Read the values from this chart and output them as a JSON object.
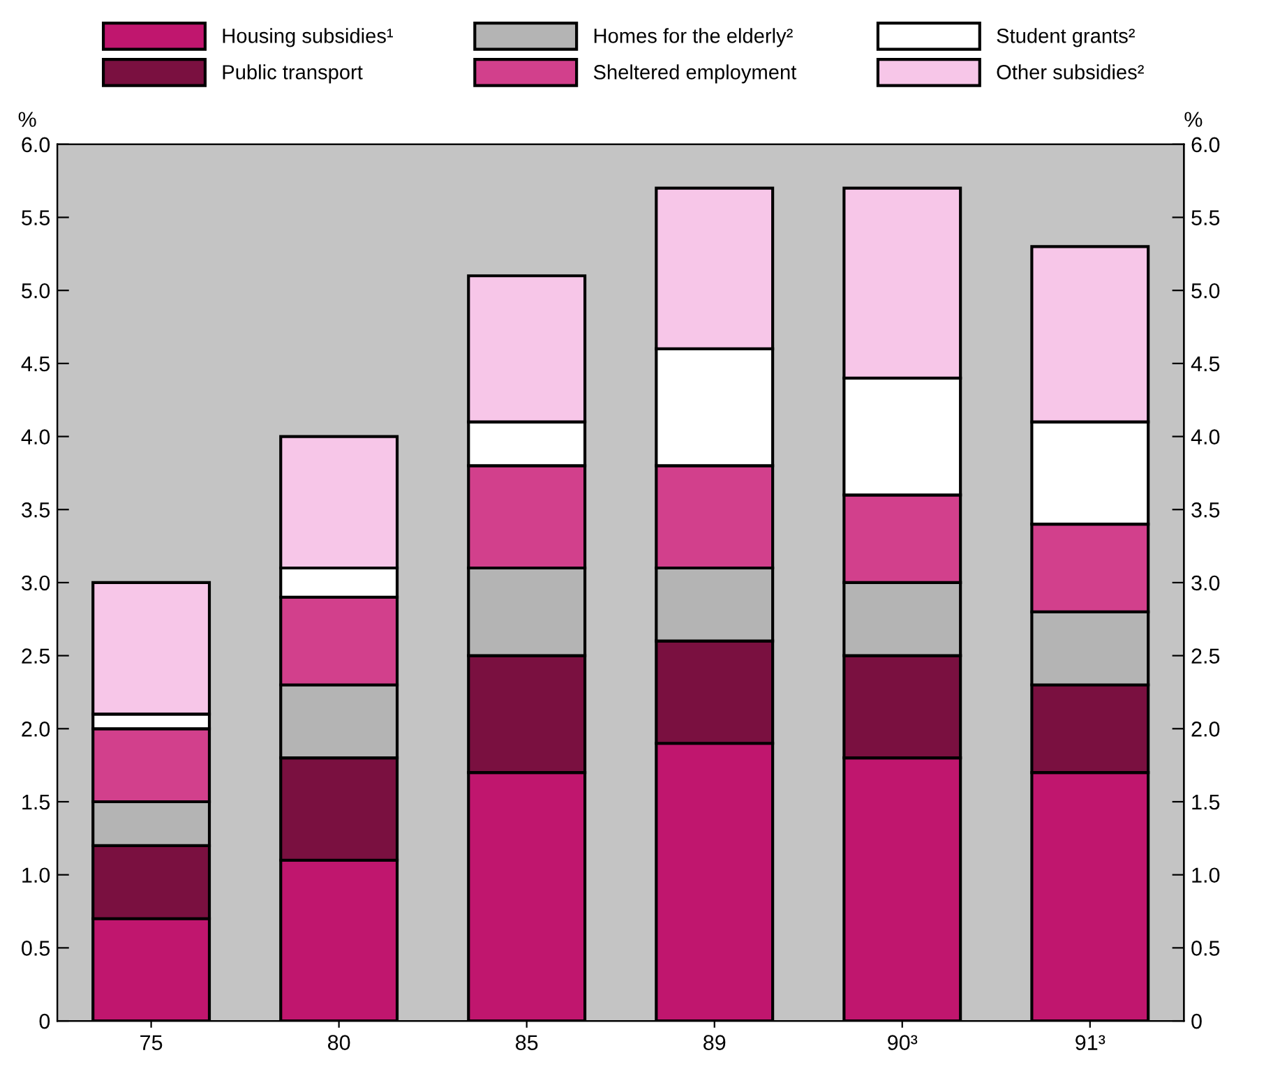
{
  "chart_data": {
    "type": "bar",
    "stacked": true,
    "categories": [
      "75",
      "80",
      "85",
      "89",
      "90³",
      "91³"
    ],
    "series": [
      {
        "name": "Housing subsidies¹",
        "color": "#c0166e",
        "values": [
          0.7,
          1.1,
          1.7,
          1.9,
          1.8,
          1.7
        ]
      },
      {
        "name": "Public transport",
        "color": "#7a1040",
        "values": [
          0.5,
          0.7,
          0.8,
          0.7,
          0.7,
          0.6
        ]
      },
      {
        "name": "Homes for the elderly²",
        "color": "#b4b4b4",
        "values": [
          0.3,
          0.5,
          0.6,
          0.5,
          0.5,
          0.5
        ]
      },
      {
        "name": "Sheltered employment",
        "color": "#d2408c",
        "values": [
          0.5,
          0.6,
          0.7,
          0.7,
          0.6,
          0.6
        ]
      },
      {
        "name": "Student grants²",
        "color": "#ffffff",
        "values": [
          0.1,
          0.2,
          0.3,
          0.8,
          0.8,
          0.7
        ]
      },
      {
        "name": "Other subsidies²",
        "color": "#f7c6e8",
        "values": [
          0.9,
          0.9,
          1.0,
          1.1,
          1.3,
          1.2
        ]
      }
    ],
    "ylabel": "%",
    "y2label": "%",
    "ylim": [
      0,
      6
    ],
    "yticks": [
      0,
      0.5,
      {
        "value": 1,
        "label": "1.0"
      },
      1.5,
      {
        "value": 2,
        "label": "2.0"
      },
      2.5,
      {
        "value": 3,
        "label": "3.0"
      },
      3.5,
      {
        "value": 4,
        "label": "4.0"
      },
      4.5,
      {
        "value": 5,
        "label": "5.0"
      },
      5.5,
      {
        "value": 6,
        "label": "6.0"
      }
    ],
    "y2lim": [
      0,
      6
    ],
    "y2ticks": [
      0,
      0.5,
      {
        "value": 1,
        "label": "1.0"
      },
      1.5,
      {
        "value": 2,
        "label": "2.0"
      },
      2.5,
      {
        "value": 3,
        "label": "3.0"
      },
      3.5,
      {
        "value": 4,
        "label": "4.0"
      },
      4.5,
      {
        "value": 5,
        "label": "5.0"
      },
      5.5,
      {
        "value": 6,
        "label": "6.0"
      }
    ],
    "legend": "top",
    "grid": false
  }
}
